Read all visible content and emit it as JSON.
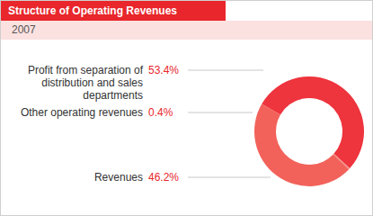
{
  "chart_data": {
    "type": "pie",
    "title": "Structure of Operating Revenues",
    "subtitle": "2007",
    "categories": [
      "Profit from separation of distribution and sales departments",
      "Other operating revenues",
      "Revenues"
    ],
    "values": [
      53.4,
      0.4,
      46.2
    ],
    "value_labels": [
      "53.4%",
      "0.4%",
      "46.2%"
    ],
    "colors": [
      "#ee343d",
      "#f48a84",
      "#f2625a"
    ],
    "data_labels": true
  }
}
